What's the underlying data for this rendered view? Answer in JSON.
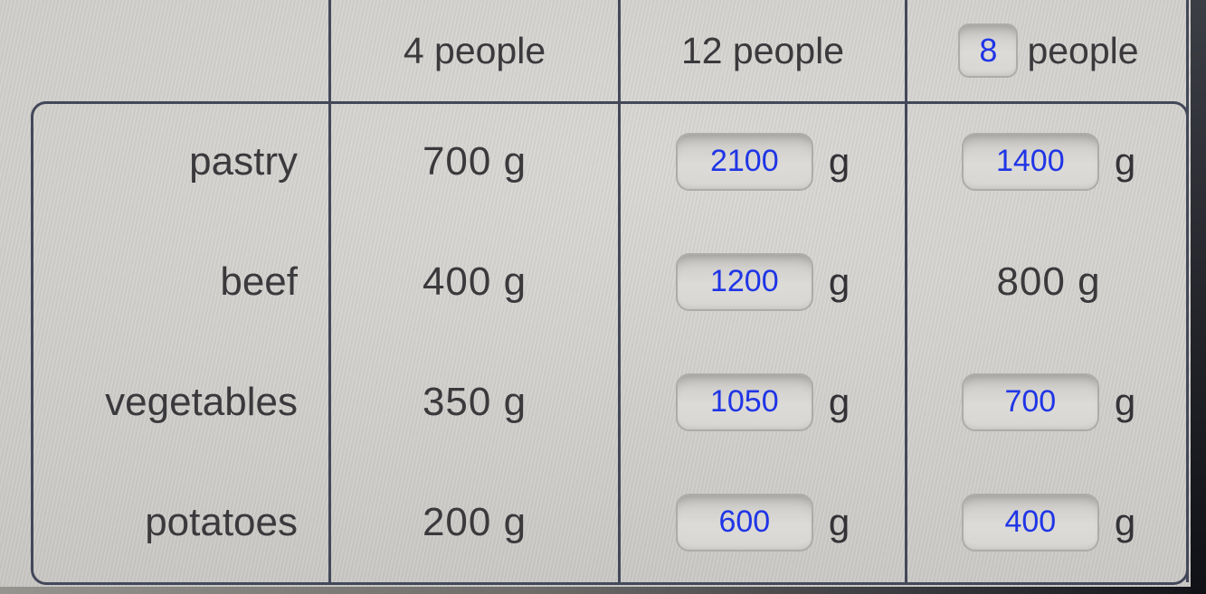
{
  "header": {
    "col_4_people": "4 people",
    "col_12_people": "12 people",
    "people_input_value": "8",
    "people_label": "people"
  },
  "unit_label": "g",
  "rows": {
    "pastry": {
      "label": "pastry",
      "base_qty": "700 g",
      "qty_12_input": "2100",
      "qty_8_input": "1400"
    },
    "beef": {
      "label": "beef",
      "base_qty": "400 g",
      "qty_12_input": "1200",
      "qty_8_text": "800 g"
    },
    "vegetables": {
      "label": "vegetables",
      "base_qty": "350 g",
      "qty_12_input": "1050",
      "qty_8_input": "700"
    },
    "potatoes": {
      "label": "potatoes",
      "base_qty": "200 g",
      "qty_12_input": "600",
      "qty_8_input": "400"
    }
  },
  "colors": {
    "accent_blue": "#1f35e6",
    "grid_line": "#434859",
    "text_dark": "#3a393c",
    "screen_bg": "#d5d3cf"
  }
}
